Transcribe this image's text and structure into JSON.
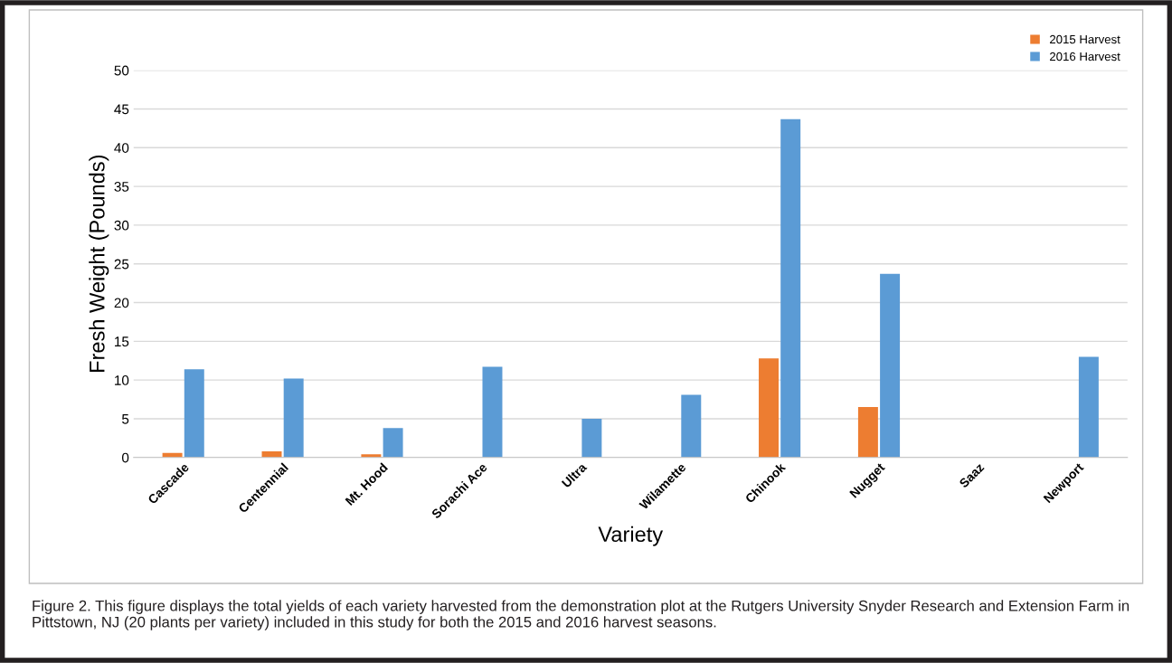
{
  "chart_data": {
    "type": "bar",
    "categories": [
      "Cascade",
      "Centennial",
      "Mt. Hood",
      "Sorachi Ace",
      "Ultra",
      "Wilamette",
      "Chinook",
      "Nugget",
      "Saaz",
      "Newport"
    ],
    "series": [
      {
        "name": "2015 Harvest",
        "color": "#ed7d31",
        "values": [
          0.6,
          0.8,
          0.4,
          0,
          0,
          0,
          12.8,
          6.5,
          0,
          0
        ]
      },
      {
        "name": "2016 Harvest",
        "color": "#5b9bd5",
        "values": [
          11.4,
          10.2,
          3.8,
          11.7,
          5.0,
          8.1,
          43.7,
          23.7,
          0,
          13.0
        ]
      }
    ],
    "xlabel": "Variety",
    "ylabel": "Fresh Weight (Pounds)",
    "ylim": [
      0,
      50
    ],
    "yticks": [
      0,
      5,
      10,
      15,
      20,
      25,
      30,
      35,
      40,
      45,
      50
    ],
    "grid": "y",
    "legend": "top right",
    "annotations": [
      "Figure 2. This figure displays the total yields of each variety harvested from the demonstration plot at the Rutgers University Snyder Research and Extension Farm in Pittstown, NJ (20 plants per variety) included in this study for both the 2015 and 2016 harvest seasons."
    ]
  }
}
